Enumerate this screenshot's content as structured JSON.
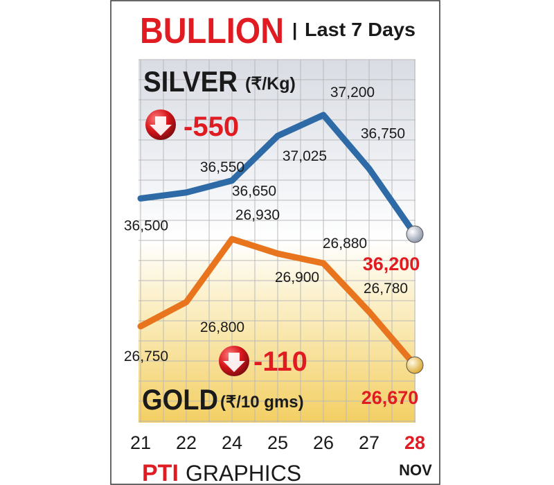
{
  "header": {
    "title": "BULLION",
    "subtitle": "Last 7 Days",
    "separator": "|"
  },
  "silver": {
    "name": "SILVER",
    "unit": "(₹/Kg)",
    "change": "-550",
    "last_value": "36,200"
  },
  "gold": {
    "name": "GOLD",
    "unit": "(₹/10 gms)",
    "change": "-110",
    "last_value": "26,670"
  },
  "month": "NOV",
  "footer": {
    "brand": "PTI",
    "text": "GRAPHICS"
  },
  "colors": {
    "title_red": "#e01b22",
    "silver_line": "#2e6aa6",
    "gold_line": "#e8741e",
    "label_red": "#e01b22",
    "grid": "#b9b9b9"
  },
  "icons": {
    "change_indicator": "red-down-arrow-ball-icon"
  },
  "chart_data": [
    {
      "type": "line",
      "categories": [
        "21",
        "22",
        "24",
        "25",
        "26",
        "27",
        "28"
      ],
      "series": [
        {
          "name": "SILVER",
          "values": [
            36500,
            36550,
            36650,
            37025,
            37200,
            36750,
            36200
          ],
          "labels": [
            "36,500",
            "36,550",
            "36,650",
            "37,025",
            "37,200",
            "36,750",
            "36,200"
          ]
        }
      ],
      "title": "SILVER",
      "ylabel": "(₹/Kg)",
      "grid": true
    },
    {
      "type": "line",
      "categories": [
        "21",
        "22",
        "24",
        "25",
        "26",
        "27",
        "28"
      ],
      "series": [
        {
          "name": "GOLD",
          "values": [
            26750,
            26800,
            26930,
            26900,
            26880,
            26780,
            26670
          ],
          "labels": [
            "26,750",
            "26,800",
            "26,930",
            "26,900",
            "26,880",
            "26,780",
            "26,670"
          ]
        }
      ],
      "title": "GOLD",
      "ylabel": "(₹/10 gms)",
      "grid": true
    }
  ]
}
